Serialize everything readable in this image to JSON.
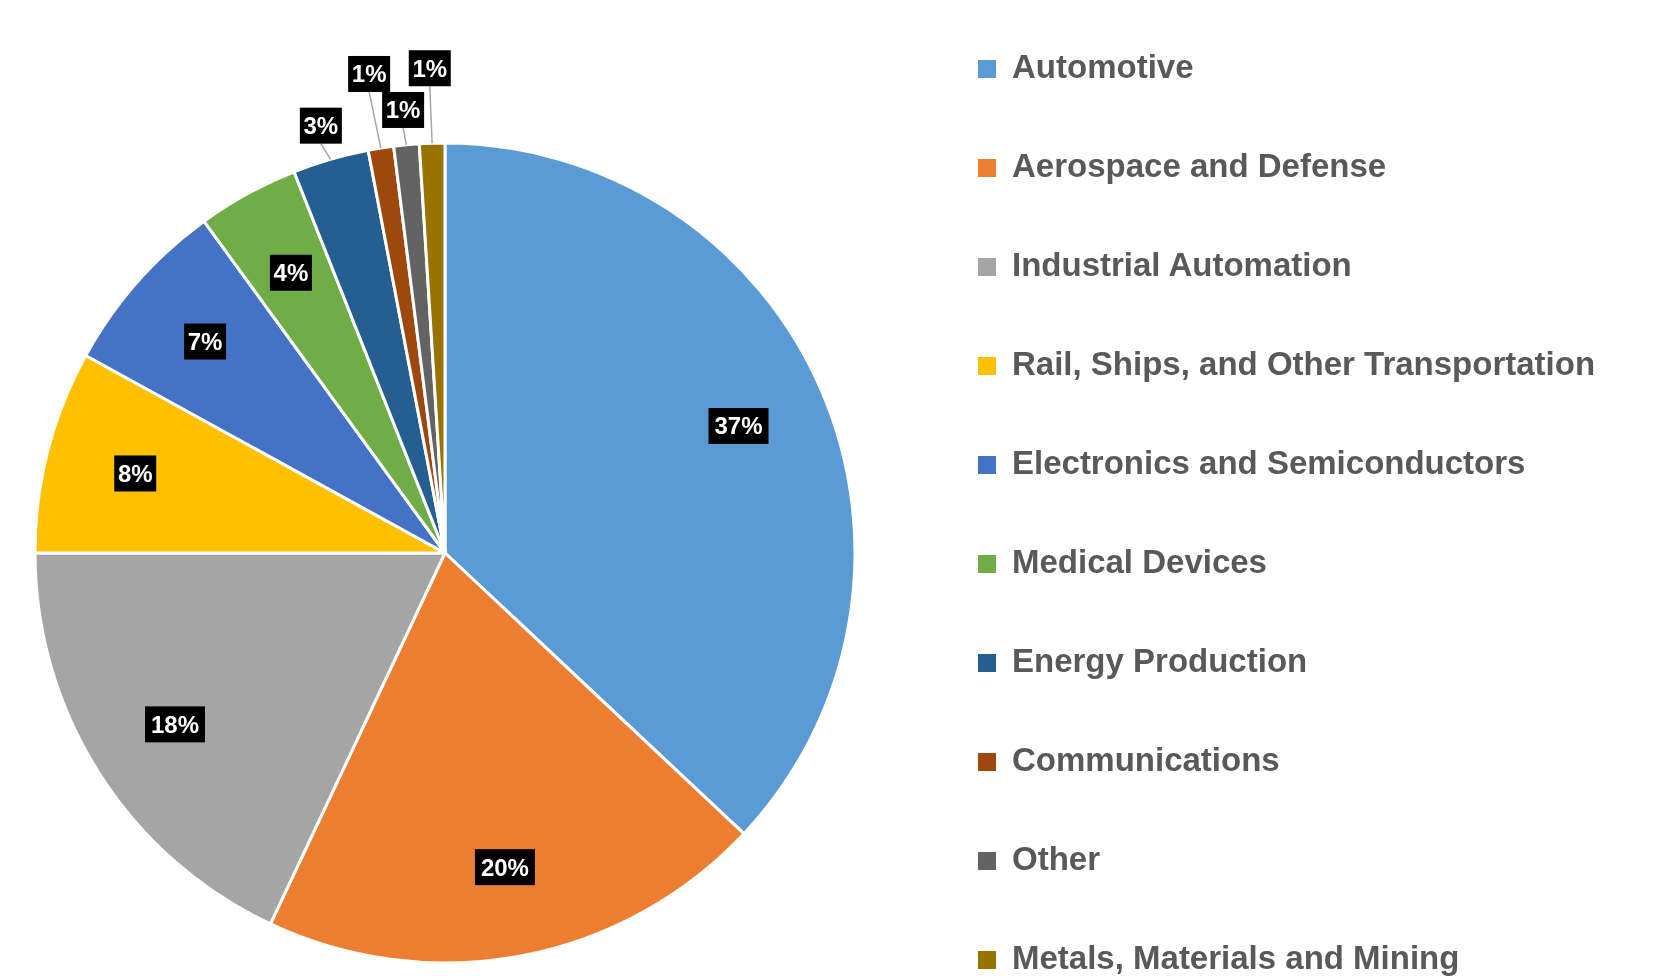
{
  "chart_data": {
    "type": "pie",
    "categories": [
      "Automotive",
      "Aerospace and Defense",
      "Industrial Automation",
      "Rail, Ships, and Other Transportation",
      "Electronics and Semiconductors",
      "Medical Devices",
      "Energy Production",
      "Communications",
      "Other",
      "Metals, Materials and Mining"
    ],
    "values": [
      37,
      20,
      18,
      8,
      7,
      4,
      3,
      1,
      1,
      1
    ],
    "value_labels": [
      "37%",
      "20%",
      "18%",
      "8%",
      "7%",
      "4%",
      "3%",
      "1%",
      "1%",
      "1%"
    ],
    "colors": [
      "#5b9bd5",
      "#ed7d31",
      "#a5a5a5",
      "#ffc000",
      "#4472c4",
      "#70ad47",
      "#255e91",
      "#9e480e",
      "#636363",
      "#997300"
    ],
    "legend": "right"
  }
}
